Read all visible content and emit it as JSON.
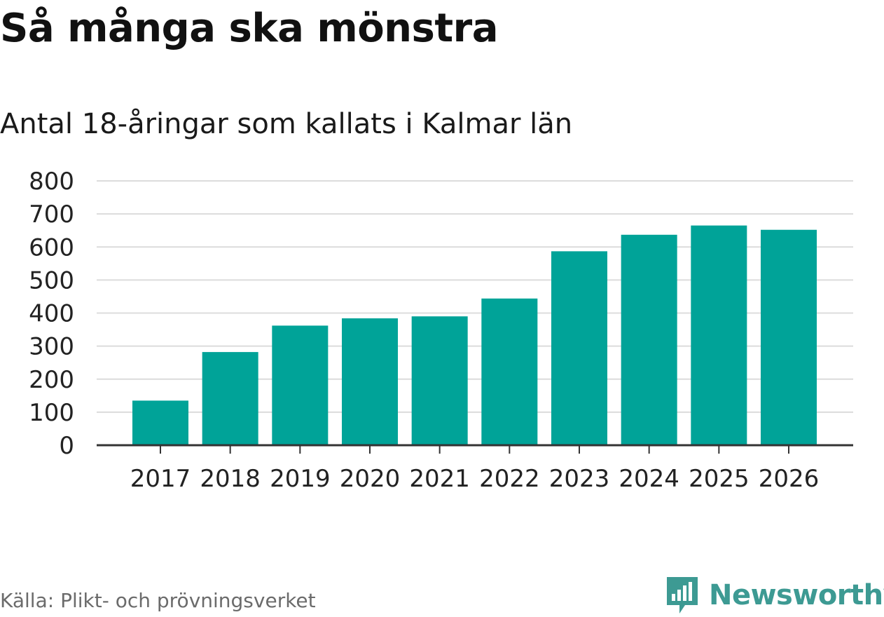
{
  "title": "Så många ska mönstra",
  "subtitle": "Antal 18-åringar som kallats i Kalmar län",
  "source": "Källa: Plikt- och prövningsverket",
  "brand": {
    "name": "Newsworthy",
    "icon": "newsworthy-logo-icon",
    "color": "#3d9a93"
  },
  "colors": {
    "bar": "#00a398",
    "grid": "#dcdcdc",
    "axis": "#333333",
    "tick_text": "#222222"
  },
  "chart_data": {
    "type": "bar",
    "title": "Så många ska mönstra",
    "subtitle": "Antal 18-åringar som kallats i Kalmar län",
    "xlabel": "",
    "ylabel": "",
    "categories": [
      "2017",
      "2018",
      "2019",
      "2020",
      "2021",
      "2022",
      "2023",
      "2024",
      "2025",
      "2026"
    ],
    "values": [
      135,
      282,
      362,
      384,
      390,
      444,
      587,
      637,
      665,
      652
    ],
    "ylim": [
      0,
      800
    ],
    "yticks": [
      "0",
      "100",
      "200",
      "300",
      "400",
      "500",
      "600",
      "700",
      "800"
    ],
    "grid": true,
    "legend": "none"
  }
}
